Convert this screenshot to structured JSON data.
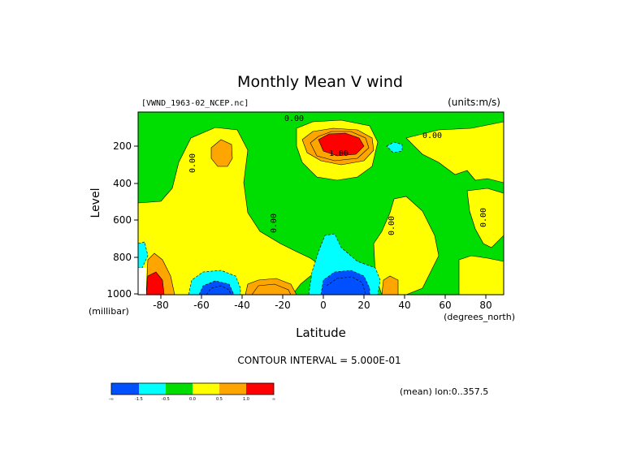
{
  "chart_data": {
    "type": "contour",
    "title": "Monthly Mean V wind",
    "dataset": "[VWND_1963-02_NCEP.nc]",
    "units": "(units:m/s)",
    "xlabel": "Latitude",
    "x_units": "(degrees_north)",
    "ylabel": "Level",
    "y_units": "(millibar)",
    "xlim": [
      -90,
      90
    ],
    "ylim": [
      1000,
      10
    ],
    "x_ticks": [
      "-80",
      "-60",
      "-40",
      "-20",
      "0",
      "20",
      "40",
      "60",
      "80"
    ],
    "y_ticks": [
      "200",
      "400",
      "600",
      "800",
      "1000"
    ],
    "contour_interval": "CONTOUR INTERVAL = 5.000E-01",
    "mean_note": "(mean) lon:0..357.5",
    "contour_labels": [
      "0.00",
      "0.00",
      "0.00",
      "0.00",
      "0.00",
      "0.00",
      "1.00"
    ],
    "levels": [
      {
        "range": "< -1.5",
        "color": "#0050ff"
      },
      {
        "range": "-1.5 to -0.5",
        "color": "#00ffff"
      },
      {
        "range": "-0.5 to 0.0",
        "color": "#00dd00"
      },
      {
        "range": "0.0 to 0.5",
        "color": "#ffff00"
      },
      {
        "range": "0.5 to 1.0",
        "color": "#ffa500"
      },
      {
        "range": "> 1.0",
        "color": "#ff0000"
      }
    ],
    "colorbar_labels": [
      "-∞",
      "-1.5",
      "-0.5",
      "0.0",
      "0.5",
      "1.0",
      "∞"
    ],
    "features": [
      {
        "type": "maximum",
        "lat": 12,
        "level": 150,
        "max_value": 2.0
      },
      {
        "type": "minimum",
        "lat": 12,
        "level": 960,
        "min_value": -2.0
      },
      {
        "type": "minimum",
        "lat": -50,
        "level": 990,
        "min_value": -2.0
      },
      {
        "type": "maximum",
        "lat": -85,
        "level": 950,
        "max_value": 1.5
      },
      {
        "type": "maximum",
        "lat": -20,
        "level": 990,
        "max_value": 1.0
      },
      {
        "type": "maximum",
        "lat": -47,
        "level": 240,
        "max_value": 0.8
      }
    ]
  }
}
